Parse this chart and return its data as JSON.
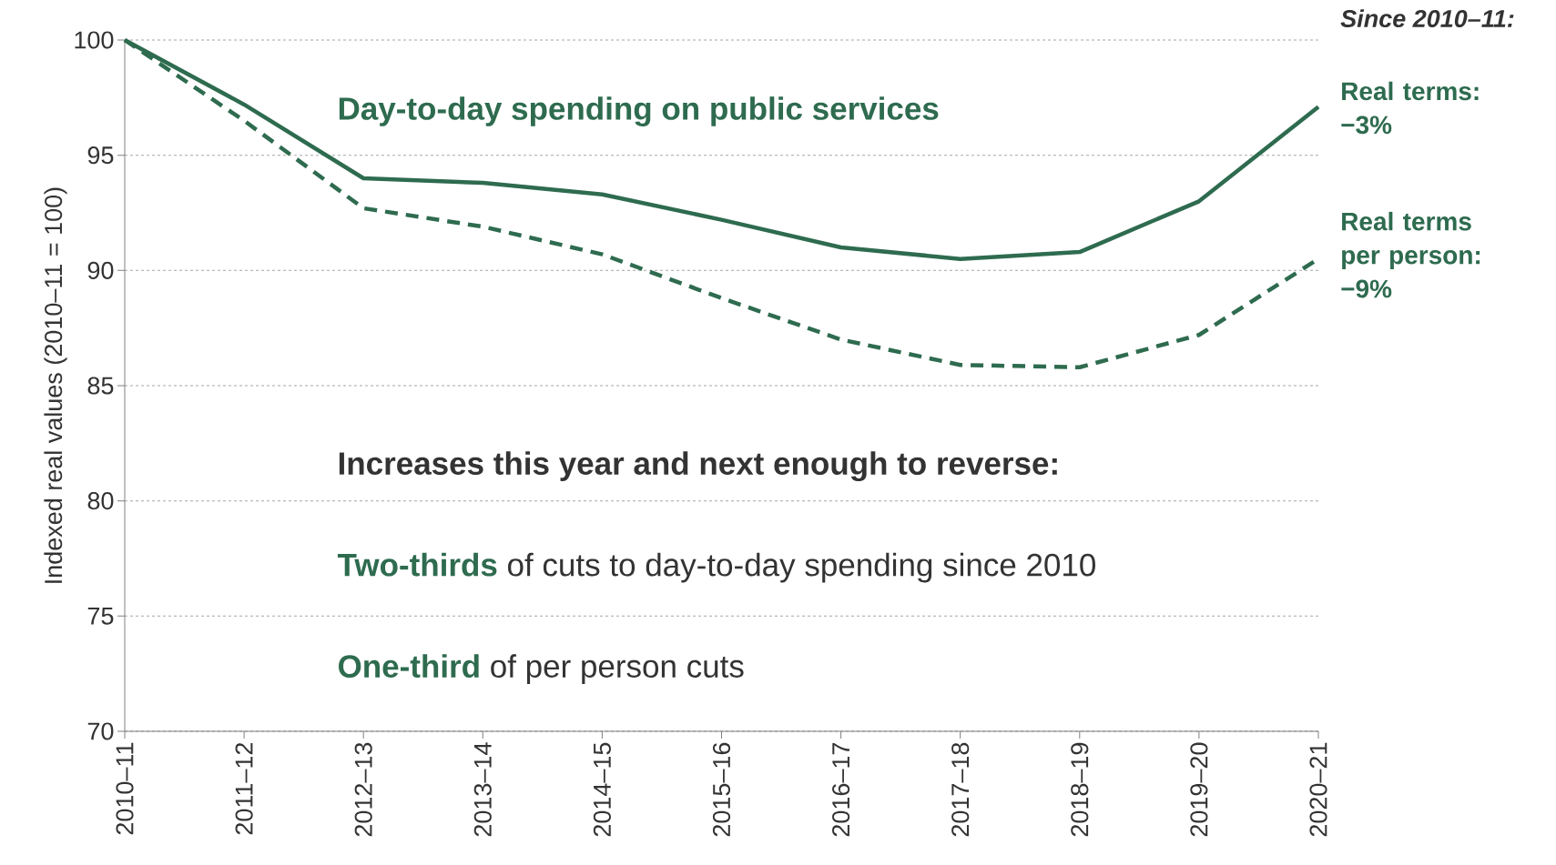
{
  "chart_data": {
    "type": "line",
    "title": "Day-to-day spending on public services",
    "ylabel": "Indexed real values (2010–11 = 100)",
    "legend_title": "Since 2010–11:",
    "categories": [
      "2010–11",
      "2011–12",
      "2012–13",
      "2013–14",
      "2014–15",
      "2015–16",
      "2016–17",
      "2017–18",
      "2018–19",
      "2019–20",
      "2020–21"
    ],
    "series": [
      {
        "name": "Real terms: −3%",
        "color": "#2e6b4f",
        "line_style": "solid",
        "values": [
          100,
          97.2,
          94.0,
          93.8,
          93.3,
          92.2,
          91.0,
          90.5,
          90.8,
          93.0,
          97.1
        ]
      },
      {
        "name": "Real terms per person: −9%",
        "color": "#2e6b4f",
        "line_style": "dashed",
        "values": [
          100,
          96.5,
          92.7,
          91.9,
          90.7,
          88.8,
          87.0,
          85.9,
          85.8,
          87.2,
          90.5
        ]
      }
    ],
    "ylim": [
      70,
      100
    ],
    "yticks": [
      70,
      75,
      80,
      85,
      90,
      95,
      100
    ],
    "grid": "y",
    "annotations": [
      "Increases this year and next enough to reverse:",
      "**Two-thirds** of cuts to day-to-day spending since 2010",
      "**One-third** of per person cuts"
    ]
  }
}
